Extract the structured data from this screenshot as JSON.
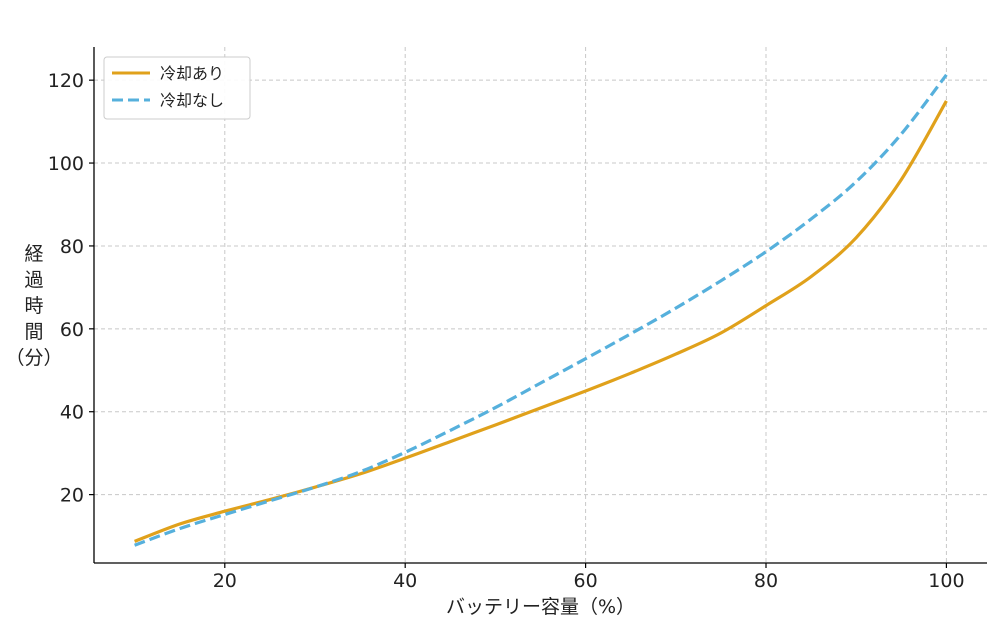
{
  "chart_data": {
    "type": "line",
    "title": "",
    "xlabel": "バッテリー容量（%）",
    "ylabel": "経過時間（分）",
    "ylabel_chars": [
      "経",
      "過",
      "時",
      "間",
      "（分）"
    ],
    "xlim": [
      5.5,
      104.5
    ],
    "ylim": [
      3.5,
      128
    ],
    "xticks": [
      20,
      40,
      60,
      80,
      100
    ],
    "yticks": [
      20,
      40,
      60,
      80,
      100,
      120
    ],
    "grid": true,
    "legend_position": "top-left",
    "series": [
      {
        "name": "冷却あり",
        "color": "#E0A11B",
        "style": "solid",
        "x": [
          10,
          15,
          20,
          25,
          30,
          35,
          40,
          45,
          50,
          55,
          60,
          65,
          70,
          75,
          80,
          85,
          90,
          95,
          100
        ],
        "y": [
          8.7,
          12.9,
          16.0,
          18.8,
          21.8,
          25.0,
          28.8,
          32.8,
          36.8,
          40.9,
          45.0,
          49.3,
          53.9,
          59.0,
          65.6,
          72.6,
          82.0,
          96.0,
          115.0
        ]
      },
      {
        "name": "冷却なし",
        "color": "#56B0DC",
        "style": "dashed",
        "x": [
          10,
          15,
          20,
          25,
          30,
          35,
          40,
          45,
          50,
          55,
          60,
          65,
          70,
          75,
          80,
          85,
          90,
          95,
          100
        ],
        "y": [
          7.8,
          11.8,
          15.2,
          18.5,
          21.8,
          25.5,
          30.2,
          35.5,
          41.0,
          46.9,
          52.8,
          58.8,
          65.0,
          71.6,
          78.6,
          86.5,
          95.5,
          107.0,
          121.3
        ]
      }
    ]
  }
}
